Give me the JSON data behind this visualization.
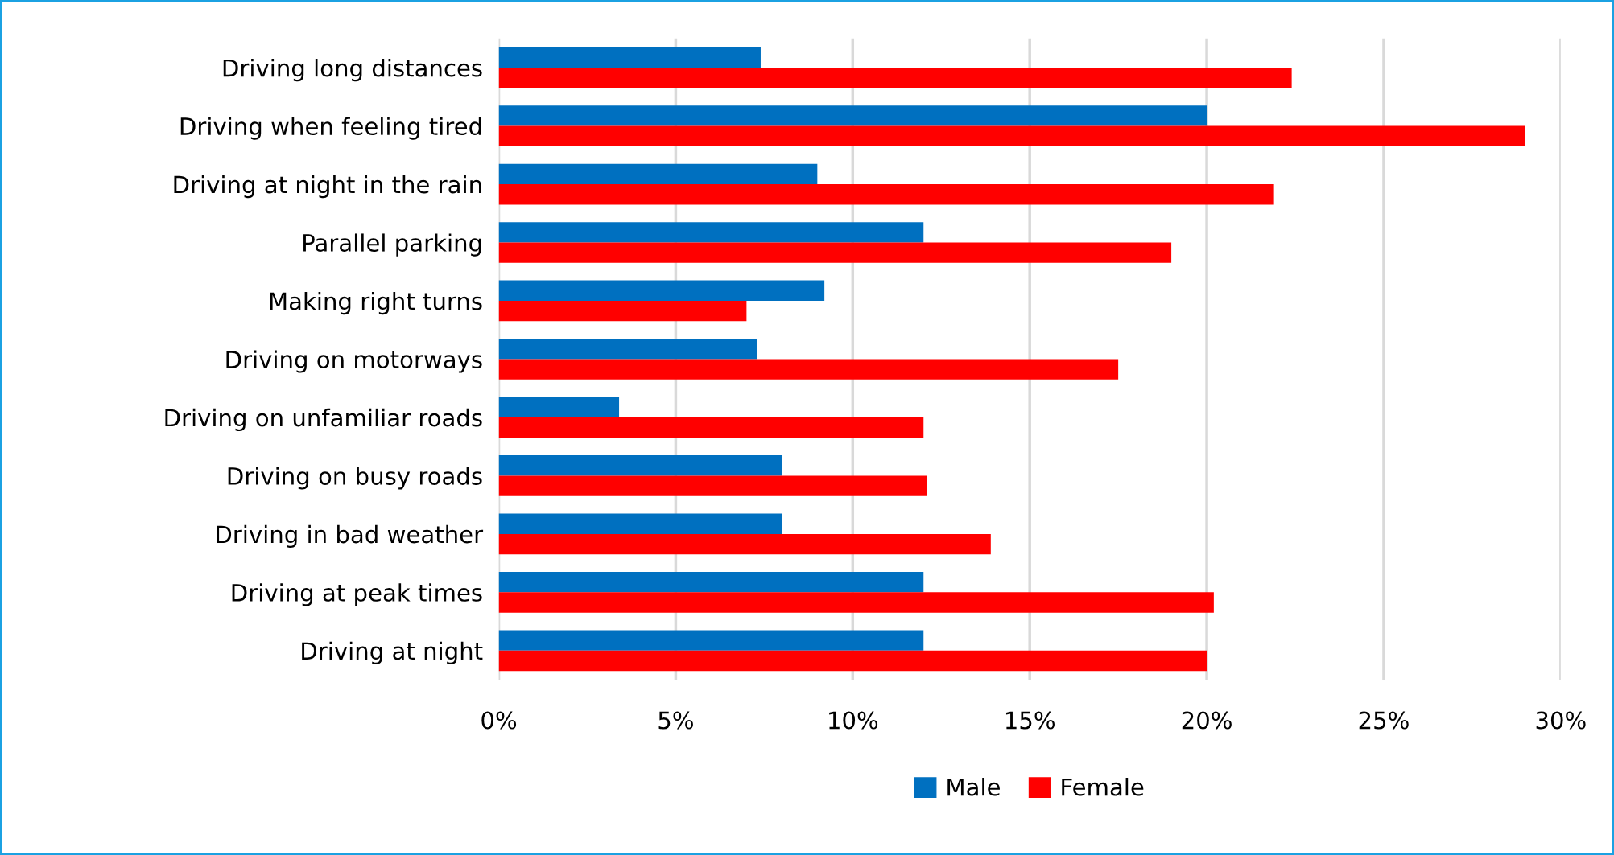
{
  "chart_data": {
    "type": "bar",
    "orientation": "horizontal",
    "categories": [
      "Driving long distances",
      "Driving when feeling tired",
      "Driving at night in the rain",
      "Parallel parking",
      "Making right turns",
      "Driving on motorways",
      "Driving on unfamiliar roads",
      "Driving on busy roads",
      "Driving in bad weather",
      "Driving at peak times",
      "Driving at night"
    ],
    "series": [
      {
        "name": "Male",
        "color": "#0070c0",
        "values": [
          7.4,
          20.0,
          9.0,
          12.0,
          9.2,
          7.3,
          3.4,
          8.0,
          8.0,
          12.0,
          12.0
        ]
      },
      {
        "name": "Female",
        "color": "#ff0000",
        "values": [
          22.4,
          29.0,
          21.9,
          19.0,
          7.0,
          17.5,
          12.0,
          12.1,
          13.9,
          20.2,
          20.0
        ]
      }
    ],
    "xlim": [
      0,
      30
    ],
    "xticks": [
      {
        "value": 0,
        "label": "0%"
      },
      {
        "value": 5,
        "label": "5%"
      },
      {
        "value": 10,
        "label": "10%"
      },
      {
        "value": 15,
        "label": "15%"
      },
      {
        "value": 20,
        "label": "20%"
      },
      {
        "value": 25,
        "label": "25%"
      },
      {
        "value": 30,
        "label": "30%"
      }
    ],
    "grid": "x",
    "legend": "bottom"
  }
}
